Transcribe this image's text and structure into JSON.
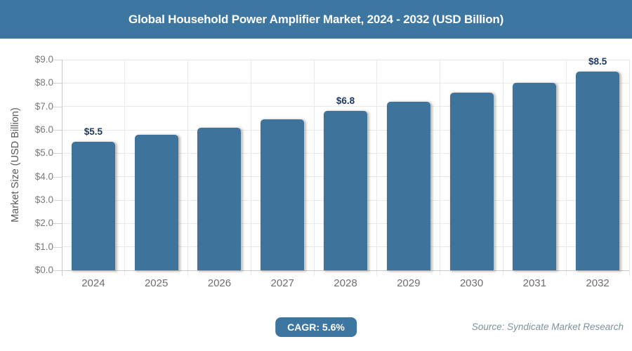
{
  "header": {
    "title": "Global Household Power Amplifier Market, 2024 - 2032 (USD Billion)"
  },
  "chart_data": {
    "type": "bar",
    "title": "Global Household Power Amplifier Market, 2024 - 2032 (USD Billion)",
    "ylabel": "Market Size (USD Billion)",
    "xlabel": "",
    "categories": [
      "2024",
      "2025",
      "2026",
      "2027",
      "2028",
      "2029",
      "2030",
      "2031",
      "2032"
    ],
    "values": [
      5.5,
      5.8,
      6.1,
      6.45,
      6.8,
      7.2,
      7.6,
      8.0,
      8.5
    ],
    "bar_labels": [
      "$5.5",
      "",
      "",
      "",
      "$6.8",
      "",
      "",
      "",
      "$8.5"
    ],
    "ylim": [
      0,
      9
    ],
    "ytick_step": 1,
    "ytick_labels": [
      "$0.0",
      "$1.0",
      "$2.0",
      "$3.0",
      "$4.0",
      "$5.0",
      "$6.0",
      "$7.0",
      "$8.0",
      "$9.0"
    ],
    "grid": true,
    "legend": "none",
    "colors": {
      "bar": "#3e749c",
      "bar_label": "#1f3864",
      "axis_text": "#7a7a7a",
      "axis_line": "#c9c9c9",
      "gridline": "#e9e9e9",
      "ylabel_text": "#5b5b5b"
    }
  },
  "footer": {
    "cagr_label": "CAGR: 5.6%",
    "source": "Source: Syndicate Market Research"
  },
  "theme": {
    "header_bg": "#3d76a0",
    "header_text": "#ffffff",
    "badge_bg": "#3d76a0",
    "badge_text": "#ffffff",
    "source_text": "#7d929a",
    "page_bg": "#ffffff"
  }
}
